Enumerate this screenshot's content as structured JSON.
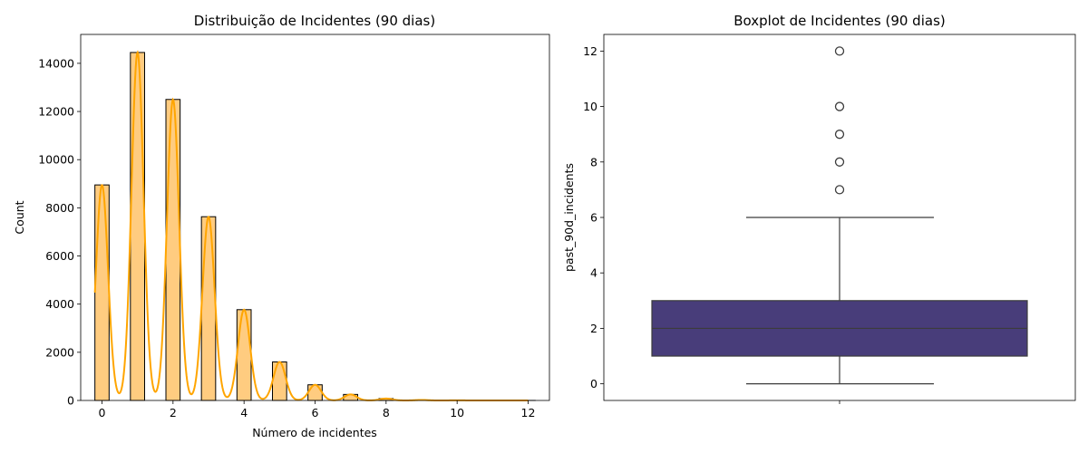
{
  "chart_data": [
    {
      "type": "bar",
      "title": "Distribuição de Incidentes (90 dias)",
      "xlabel": "Número de incidentes",
      "ylabel": "Count",
      "xlim": [
        -0.6,
        12.6
      ],
      "ylim": [
        0,
        15200
      ],
      "xticks": [
        0,
        2,
        4,
        6,
        8,
        10,
        12
      ],
      "yticks": [
        0,
        2000,
        4000,
        6000,
        8000,
        10000,
        12000,
        14000
      ],
      "bin_width": 0.4,
      "bins": [
        {
          "x": 0,
          "value": 8950
        },
        {
          "x": 1,
          "value": 14450
        },
        {
          "x": 2,
          "value": 12500
        },
        {
          "x": 3,
          "value": 7630
        },
        {
          "x": 4,
          "value": 3770
        },
        {
          "x": 5,
          "value": 1600
        },
        {
          "x": 6,
          "value": 650
        },
        {
          "x": 7,
          "value": 250
        },
        {
          "x": 8,
          "value": 80
        },
        {
          "x": 9,
          "value": 20
        },
        {
          "x": 10,
          "value": 6
        },
        {
          "x": 12,
          "value": 1
        }
      ],
      "bar_color": "#ffcc80",
      "kde_color": "#ffa500",
      "kde": true
    },
    {
      "type": "box",
      "title": "Boxplot de Incidentes (90 dias)",
      "xlabel": "",
      "ylabel": "past_90d_incidents",
      "ylim": [
        -0.6,
        12.6
      ],
      "yticks": [
        0,
        2,
        4,
        6,
        8,
        10,
        12
      ],
      "whisker_low": 0,
      "q1": 1,
      "median": 2,
      "q3": 3,
      "whisker_high": 6,
      "outliers": [
        7,
        8,
        9,
        10,
        12
      ],
      "box_color": "#483d7a"
    }
  ]
}
